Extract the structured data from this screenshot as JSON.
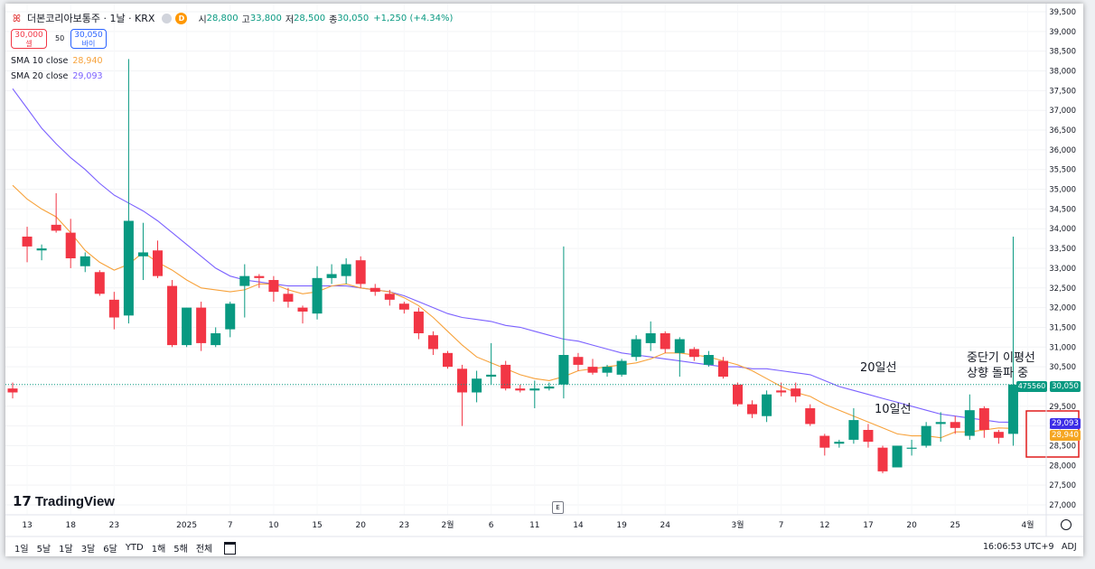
{
  "header": {
    "logo_glyph": "ꕤ",
    "symbol": "더본코리아보통주 · 1날 · KRX",
    "badge_d": "D",
    "open_label": "시",
    "open": "28,800",
    "high_label": "고",
    "high": "33,800",
    "low_label": "저",
    "low": "28,500",
    "close_label": "종",
    "close": "30,050",
    "change": "+1,250 (+4.34%)"
  },
  "quote": {
    "sell_price": "30,000",
    "sell_label": "셀",
    "spread": "50",
    "buy_price": "30,050",
    "buy_label": "바이"
  },
  "indicators": {
    "sma10_label": "SMA 10 close",
    "sma10_value": "28,940",
    "sma10_color": "#f7a23b",
    "sma20_label": "SMA 20 close",
    "sma20_value": "29,093",
    "sma20_color": "#7b61ff"
  },
  "colors": {
    "up": "#089981",
    "down": "#f23645"
  },
  "price_tags": {
    "volume": "475560",
    "last": "30,050",
    "sma20": "29,093",
    "sma10": "28,940"
  },
  "annotations": {
    "ma20": "20일선",
    "ma10": "10일선",
    "breakout_line1": "중단기 이평선",
    "breakout_line2": "상향 돌파 중"
  },
  "watermark": "TradingView",
  "bottom_bar": {
    "ranges": [
      "1일",
      "5날",
      "1달",
      "3달",
      "6달",
      "YTD",
      "1해",
      "5해",
      "전체"
    ],
    "time": "16:06:53 UTC+9",
    "adj": "ADJ"
  },
  "chart_data": {
    "type": "candlestick",
    "y_axis_ticks": [
      39500,
      39000,
      38500,
      38000,
      37500,
      37000,
      36500,
      36000,
      35500,
      35000,
      34500,
      34000,
      33500,
      33000,
      32500,
      32000,
      31500,
      31000,
      30500,
      30000,
      29500,
      29000,
      28500,
      28000,
      27500,
      27000
    ],
    "y_axis_labels": [
      "39,500",
      "39,000",
      "38,500",
      "38,000",
      "37,500",
      "37,000",
      "36,500",
      "36,000",
      "35,500",
      "35,000",
      "34,500",
      "34,000",
      "33,500",
      "33,000",
      "32,500",
      "32,000",
      "31,500",
      "31,000",
      "30,500",
      "30,000",
      "29,500",
      "29,000",
      "28,500",
      "28,000",
      "27,500",
      "27,000"
    ],
    "ylim": [
      26800,
      39650
    ],
    "x_tick_labels": [
      {
        "label": "13",
        "index": 1
      },
      {
        "label": "18",
        "index": 4
      },
      {
        "label": "23",
        "index": 7
      },
      {
        "label": "2025",
        "index": 12
      },
      {
        "label": "7",
        "index": 15
      },
      {
        "label": "10",
        "index": 18
      },
      {
        "label": "15",
        "index": 21
      },
      {
        "label": "20",
        "index": 24
      },
      {
        "label": "23",
        "index": 27
      },
      {
        "label": "2월",
        "index": 30
      },
      {
        "label": "6",
        "index": 33
      },
      {
        "label": "11",
        "index": 36
      },
      {
        "label": "14",
        "index": 39
      },
      {
        "label": "19",
        "index": 42
      },
      {
        "label": "24",
        "index": 45
      },
      {
        "label": "3월",
        "index": 50
      },
      {
        "label": "7",
        "index": 53
      },
      {
        "label": "12",
        "index": 56
      },
      {
        "label": "17",
        "index": 59
      },
      {
        "label": "20",
        "index": 62
      },
      {
        "label": "25",
        "index": 65
      },
      {
        "label": "4월",
        "index": 70
      }
    ],
    "candles": [
      {
        "o": 29950,
        "h": 30100,
        "l": 29700,
        "c": 29850
      },
      {
        "o": 33800,
        "h": 34050,
        "l": 33150,
        "c": 33550
      },
      {
        "o": 33450,
        "h": 33600,
        "l": 33200,
        "c": 33500
      },
      {
        "o": 34100,
        "h": 34900,
        "l": 33900,
        "c": 33950
      },
      {
        "o": 33900,
        "h": 34250,
        "l": 33000,
        "c": 33250
      },
      {
        "o": 33050,
        "h": 33400,
        "l": 32900,
        "c": 33300
      },
      {
        "o": 32900,
        "h": 32950,
        "l": 32300,
        "c": 32350
      },
      {
        "o": 32200,
        "h": 32400,
        "l": 31450,
        "c": 31750
      },
      {
        "o": 31800,
        "h": 38300,
        "l": 31600,
        "c": 34200
      },
      {
        "o": 33300,
        "h": 34150,
        "l": 32700,
        "c": 33400
      },
      {
        "o": 33450,
        "h": 33700,
        "l": 32750,
        "c": 32800
      },
      {
        "o": 32550,
        "h": 32700,
        "l": 31000,
        "c": 31050
      },
      {
        "o": 31050,
        "h": 32000,
        "l": 31000,
        "c": 32000
      },
      {
        "o": 32000,
        "h": 32150,
        "l": 30900,
        "c": 31100
      },
      {
        "o": 31050,
        "h": 31500,
        "l": 31000,
        "c": 31350
      },
      {
        "o": 31450,
        "h": 32150,
        "l": 31250,
        "c": 32100
      },
      {
        "o": 32550,
        "h": 33100,
        "l": 31750,
        "c": 32800
      },
      {
        "o": 32800,
        "h": 32850,
        "l": 32500,
        "c": 32750
      },
      {
        "o": 32700,
        "h": 32800,
        "l": 32150,
        "c": 32400
      },
      {
        "o": 32350,
        "h": 32500,
        "l": 32000,
        "c": 32150
      },
      {
        "o": 32000,
        "h": 32050,
        "l": 31600,
        "c": 31900
      },
      {
        "o": 31850,
        "h": 33050,
        "l": 31700,
        "c": 32750
      },
      {
        "o": 32750,
        "h": 33100,
        "l": 32600,
        "c": 32850
      },
      {
        "o": 32800,
        "h": 33250,
        "l": 32600,
        "c": 33100
      },
      {
        "o": 33200,
        "h": 33300,
        "l": 32500,
        "c": 32600
      },
      {
        "o": 32500,
        "h": 32600,
        "l": 32300,
        "c": 32400
      },
      {
        "o": 32350,
        "h": 32450,
        "l": 32050,
        "c": 32200
      },
      {
        "o": 32100,
        "h": 32150,
        "l": 31850,
        "c": 31950
      },
      {
        "o": 31900,
        "h": 32000,
        "l": 31200,
        "c": 31350
      },
      {
        "o": 31300,
        "h": 31400,
        "l": 30800,
        "c": 30950
      },
      {
        "o": 30850,
        "h": 30900,
        "l": 30450,
        "c": 30500
      },
      {
        "o": 30450,
        "h": 30550,
        "l": 29000,
        "c": 29850
      },
      {
        "o": 29850,
        "h": 30400,
        "l": 29600,
        "c": 30200
      },
      {
        "o": 30250,
        "h": 31100,
        "l": 30050,
        "c": 30300
      },
      {
        "o": 30550,
        "h": 30650,
        "l": 29900,
        "c": 29950
      },
      {
        "o": 29950,
        "h": 30050,
        "l": 29850,
        "c": 29900
      },
      {
        "o": 29900,
        "h": 30150,
        "l": 29450,
        "c": 29950
      },
      {
        "o": 29950,
        "h": 30100,
        "l": 29900,
        "c": 30000
      },
      {
        "o": 30050,
        "h": 33550,
        "l": 29700,
        "c": 30800
      },
      {
        "o": 30750,
        "h": 30850,
        "l": 30400,
        "c": 30550
      },
      {
        "o": 30500,
        "h": 30700,
        "l": 30300,
        "c": 30350
      },
      {
        "o": 30350,
        "h": 30550,
        "l": 30250,
        "c": 30500
      },
      {
        "o": 30300,
        "h": 30700,
        "l": 30250,
        "c": 30650
      },
      {
        "o": 30750,
        "h": 31300,
        "l": 30650,
        "c": 31200
      },
      {
        "o": 31100,
        "h": 31650,
        "l": 30900,
        "c": 31350
      },
      {
        "o": 31350,
        "h": 31400,
        "l": 30850,
        "c": 30950
      },
      {
        "o": 30850,
        "h": 31250,
        "l": 30250,
        "c": 31200
      },
      {
        "o": 30950,
        "h": 31000,
        "l": 30650,
        "c": 30750
      },
      {
        "o": 30550,
        "h": 30900,
        "l": 30500,
        "c": 30800
      },
      {
        "o": 30650,
        "h": 30750,
        "l": 30200,
        "c": 30250
      },
      {
        "o": 30050,
        "h": 30100,
        "l": 29500,
        "c": 29550
      },
      {
        "o": 29550,
        "h": 29650,
        "l": 29200,
        "c": 29300
      },
      {
        "o": 29250,
        "h": 29900,
        "l": 29100,
        "c": 29800
      },
      {
        "o": 29900,
        "h": 30100,
        "l": 29750,
        "c": 29850
      },
      {
        "o": 29950,
        "h": 30100,
        "l": 29600,
        "c": 29750
      },
      {
        "o": 29450,
        "h": 29550,
        "l": 29000,
        "c": 29050
      },
      {
        "o": 28750,
        "h": 28800,
        "l": 28250,
        "c": 28450
      },
      {
        "o": 28550,
        "h": 28650,
        "l": 28450,
        "c": 28600
      },
      {
        "o": 28650,
        "h": 29450,
        "l": 28550,
        "c": 29150
      },
      {
        "o": 28900,
        "h": 29050,
        "l": 28450,
        "c": 28600
      },
      {
        "o": 28450,
        "h": 28500,
        "l": 27800,
        "c": 27850
      },
      {
        "o": 27950,
        "h": 28500,
        "l": 27950,
        "c": 28500
      },
      {
        "o": 28450,
        "h": 28650,
        "l": 28250,
        "c": 28450
      },
      {
        "o": 28500,
        "h": 29100,
        "l": 28450,
        "c": 29000
      },
      {
        "o": 29050,
        "h": 29350,
        "l": 28600,
        "c": 29100
      },
      {
        "o": 29100,
        "h": 29250,
        "l": 28800,
        "c": 28950
      },
      {
        "o": 28750,
        "h": 29800,
        "l": 28650,
        "c": 29400
      },
      {
        "o": 29450,
        "h": 29500,
        "l": 28700,
        "c": 28900
      },
      {
        "o": 28850,
        "h": 28900,
        "l": 28550,
        "c": 28700
      },
      {
        "o": 28800,
        "h": 33800,
        "l": 28500,
        "c": 30050
      }
    ],
    "sma10": [
      35100,
      34750,
      34500,
      34300,
      33900,
      33450,
      33150,
      32950,
      33100,
      33400,
      33150,
      32950,
      32700,
      32500,
      32450,
      32400,
      32450,
      32600,
      32600,
      32450,
      32350,
      32400,
      32550,
      32600,
      32500,
      32450,
      32400,
      32250,
      32050,
      31750,
      31400,
      31050,
      30750,
      30600,
      30450,
      30300,
      30200,
      30150,
      30250,
      30400,
      30450,
      30500,
      30550,
      30600,
      30700,
      30850,
      30850,
      30800,
      30750,
      30650,
      30550,
      30400,
      30200,
      30000,
      29850,
      29750,
      29550,
      29400,
      29250,
      29100,
      28950,
      28800,
      28750,
      28750,
      28700,
      28850,
      28850,
      28900,
      28950,
      28940
    ],
    "sma20": [
      37550,
      37050,
      36550,
      36150,
      35800,
      35500,
      35150,
      34850,
      34650,
      34450,
      34200,
      33900,
      33600,
      33300,
      33000,
      32800,
      32700,
      32650,
      32600,
      32550,
      32550,
      32550,
      32550,
      32550,
      32500,
      32450,
      32400,
      32300,
      32150,
      32000,
      31850,
      31750,
      31700,
      31650,
      31550,
      31500,
      31400,
      31300,
      31200,
      31150,
      31050,
      30950,
      30850,
      30800,
      30750,
      30700,
      30650,
      30600,
      30550,
      30500,
      30500,
      30450,
      30450,
      30400,
      30350,
      30300,
      30150,
      30000,
      29900,
      29800,
      29700,
      29600,
      29500,
      29400,
      29300,
      29250,
      29200,
      29150,
      29100,
      29093
    ]
  }
}
